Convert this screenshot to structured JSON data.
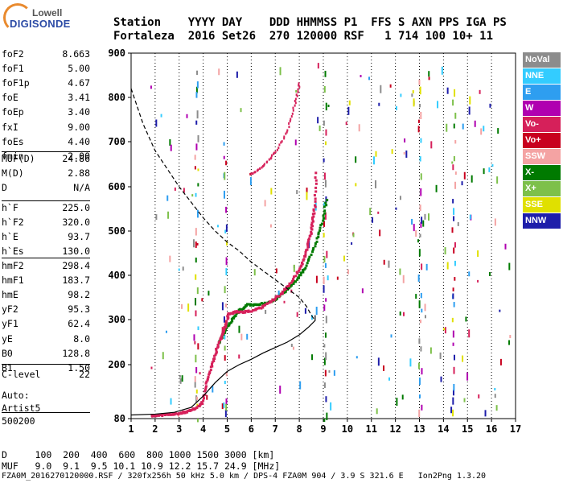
{
  "logo": {
    "line1": "Lowell",
    "line2": "DIGISONDE"
  },
  "header": {
    "line1": "Station    YYYY DAY    DDD HHMMSS P1  FFS S AXN PPS IGA PS",
    "line2": "Fortaleza  2016 Set26  270 120000 RSF   1 714 100 10+ 11"
  },
  "params": {
    "group1": [
      {
        "k": "foF2",
        "v": "8.663"
      },
      {
        "k": "foF1",
        "v": "5.00"
      },
      {
        "k": "foF1p",
        "v": "4.67"
      },
      {
        "k": "foE",
        "v": "3.41"
      },
      {
        "k": "foEp",
        "v": "3.40"
      },
      {
        "k": "fxI",
        "v": "9.00"
      },
      {
        "k": "foEs",
        "v": "4.40"
      },
      {
        "k": "fmin",
        "v": "2.00"
      }
    ],
    "group2": [
      {
        "k": "MUF(D)",
        "v": "24.86"
      },
      {
        "k": "M(D)",
        "v": "2.88"
      },
      {
        "k": "D",
        "v": "N/A"
      }
    ],
    "group3": [
      {
        "k": "h`F",
        "v": "225.0"
      },
      {
        "k": "h`F2",
        "v": "320.0"
      },
      {
        "k": "h`E",
        "v": "93.7"
      },
      {
        "k": "h`Es",
        "v": "130.0"
      }
    ],
    "group4": [
      {
        "k": "hmF2",
        "v": "298.4"
      },
      {
        "k": "hmF1",
        "v": "183.7"
      },
      {
        "k": "hmE",
        "v": "98.2"
      },
      {
        "k": "yF2",
        "v": "95.3"
      },
      {
        "k": "yF1",
        "v": "62.4"
      },
      {
        "k": "yE",
        "v": "8.0"
      },
      {
        "k": "B0",
        "v": "128.8"
      },
      {
        "k": "B1",
        "v": "1.50"
      }
    ],
    "clevel": {
      "k": "C-level",
      "v": "22"
    },
    "auto1": "Auto:",
    "auto2": "Artist5",
    "auto3": "500200"
  },
  "legend": [
    {
      "label": "NoVal",
      "color": "#8c8c8c"
    },
    {
      "label": "NNE",
      "color": "#33ccff"
    },
    {
      "label": "E",
      "color": "#2e9ef0"
    },
    {
      "label": "W",
      "color": "#b000b0"
    },
    {
      "label": "Vo-",
      "color": "#d6205a"
    },
    {
      "label": "Vo+",
      "color": "#c8001e"
    },
    {
      "label": "SSW",
      "color": "#f4a3a3"
    },
    {
      "label": "X-",
      "color": "#007a00"
    },
    {
      "label": "X+",
      "color": "#7dc04a"
    },
    {
      "label": "SSE",
      "color": "#e0e000"
    },
    {
      "label": "NNW",
      "color": "#1e1eaa"
    }
  ],
  "footer": {
    "line1": "D     100  200  400  600  800 1000 1500 3000 [km]",
    "line2": "MUF   9.0  9.1  9.5 10.1 10.9 12.2 15.7 24.9 [MHz]",
    "line3": "FZA0M_2016270120000.RSF / 320fx256h 50 kHz 5.0 km / DPS-4 FZA0M 904 / 3.9 S 321.6 E   Ion2Png 1.3.20"
  },
  "chart_data": {
    "type": "scatter",
    "xlim": [
      1,
      17
    ],
    "ylim": [
      80,
      900
    ],
    "x_ticks": [
      1,
      2,
      3,
      4,
      5,
      6,
      7,
      8,
      9,
      10,
      11,
      12,
      13,
      14,
      15,
      16,
      17
    ],
    "y_ticks": [
      80,
      200,
      300,
      400,
      500,
      600,
      700,
      800,
      900
    ],
    "vertical_grid_dotted": true,
    "profile_solid": {
      "x": [
        1.0,
        2.0,
        2.8,
        3.5,
        4.0,
        4.5,
        5.0,
        5.5,
        6.0,
        6.5,
        7.0,
        7.5,
        8.0,
        8.4,
        8.66,
        8.66
      ],
      "y": [
        88,
        90,
        94,
        105,
        130,
        160,
        185,
        200,
        212,
        226,
        238,
        250,
        266,
        284,
        298,
        310
      ]
    },
    "mufd_curve_dashed": {
      "x": [
        1.0,
        1.5,
        2.0,
        2.5,
        3.0,
        3.5,
        4.0,
        4.5,
        5.0,
        5.5,
        6.0,
        6.5,
        7.0,
        7.5,
        8.0,
        8.3,
        8.5,
        8.66
      ],
      "y": [
        820,
        740,
        680,
        640,
        600,
        565,
        530,
        500,
        475,
        455,
        430,
        410,
        390,
        370,
        350,
        330,
        310,
        298
      ]
    },
    "trace_o": {
      "color": "#d6205a",
      "x": [
        1.8,
        2.2,
        2.6,
        3.0,
        3.3,
        3.6,
        3.9,
        4.1,
        4.3,
        4.5,
        4.7,
        4.9,
        5.0,
        5.3,
        5.6,
        6.0,
        6.4,
        6.8,
        7.2,
        7.6,
        8.0,
        8.2,
        8.4,
        8.5,
        8.6,
        8.66
      ],
      "y": [
        88,
        90,
        92,
        95,
        98,
        105,
        115,
        160,
        200,
        235,
        265,
        290,
        315,
        320,
        320,
        322,
        330,
        345,
        360,
        385,
        420,
        450,
        490,
        520,
        560,
        640
      ]
    },
    "trace_x": {
      "color": "#007a00",
      "x": [
        4.6,
        4.9,
        5.2,
        5.5,
        5.8,
        6.2,
        6.6,
        7.0,
        7.4,
        7.8,
        8.2,
        8.6,
        8.9,
        9.1
      ],
      "y": [
        250,
        280,
        305,
        325,
        336,
        336,
        340,
        350,
        368,
        390,
        420,
        470,
        520,
        580
      ]
    },
    "trace_f2_upper": {
      "color": "#d6205a",
      "x": [
        6.0,
        6.5,
        7.0,
        7.5,
        7.8,
        8.0
      ],
      "y": [
        630,
        650,
        680,
        730,
        790,
        840
      ]
    }
  }
}
